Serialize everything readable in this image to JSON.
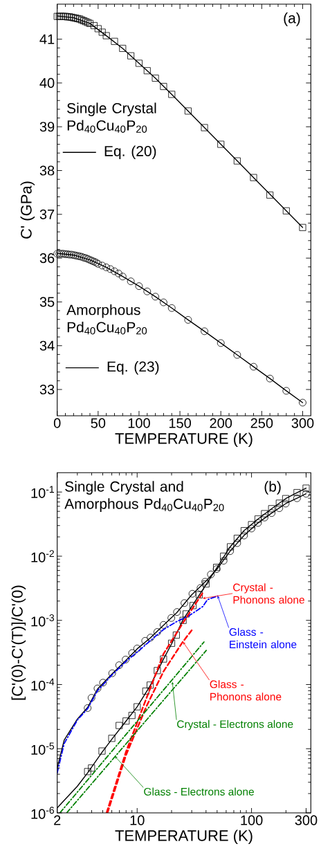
{
  "chart_data": [
    {
      "type": "scatter",
      "xlabel": "TEMPERATURE (K)",
      "ylabel": "C' (GPa)",
      "xlim": [
        0,
        310
      ],
      "ylim": [
        32.4,
        41.8
      ],
      "xticks": [
        0,
        50,
        100,
        150,
        200,
        250,
        300
      ],
      "yticks": [
        33,
        34,
        35,
        36,
        37,
        38,
        39,
        40,
        41
      ],
      "legend": "left",
      "annotations": [
        "(a)",
        "Single Crystal Pd$_{40}$Cu$_{40}$P$_{20}$",
        "Amorphous Pd$_{40}$Cu$_{40}$P$_{20}$"
      ],
      "series": [
        {
          "marker": "square",
          "color": "#000000",
          "x": [
            0,
            2.5,
            5,
            7.5,
            10,
            12.5,
            15,
            17.5,
            20,
            22.5,
            25,
            27.5,
            30,
            32.5,
            35,
            37.5,
            40,
            45,
            50,
            55,
            60,
            70,
            80,
            90,
            100,
            110,
            120,
            130,
            140,
            160,
            180,
            200,
            220,
            240,
            260,
            280,
            300
          ],
          "values": [
            41.52,
            41.52,
            41.52,
            41.52,
            41.52,
            41.51,
            41.51,
            41.5,
            41.49,
            41.48,
            41.47,
            41.46,
            41.44,
            41.42,
            41.4,
            41.38,
            41.36,
            41.31,
            41.24,
            41.16,
            41.08,
            40.95,
            40.79,
            40.62,
            40.45,
            40.28,
            40.11,
            39.92,
            39.74,
            39.36,
            38.98,
            38.6,
            38.22,
            37.84,
            37.44,
            37.08,
            36.7
          ]
        },
        {
          "type": "line",
          "name": "Eq. (20)",
          "color": "#000000",
          "line_style": "solid",
          "x": [
            0,
            20,
            40,
            60,
            80,
            100,
            120,
            140,
            160,
            180,
            200,
            220,
            240,
            260,
            280,
            300
          ],
          "values": [
            41.53,
            41.49,
            41.36,
            41.08,
            40.79,
            40.45,
            40.11,
            39.74,
            39.36,
            38.98,
            38.6,
            38.22,
            37.84,
            37.46,
            37.08,
            36.7
          ]
        },
        {
          "marker": "circle",
          "color": "#000000",
          "x": [
            0,
            2.5,
            5,
            7.5,
            10,
            12.5,
            15,
            17.5,
            20,
            22.5,
            25,
            27.5,
            30,
            32.5,
            35,
            37.5,
            40,
            42.5,
            45,
            47.5,
            50,
            55,
            60,
            65,
            70,
            75,
            80,
            90,
            100,
            110,
            120,
            130,
            140,
            160,
            180,
            200,
            220,
            240,
            260,
            280,
            300
          ],
          "values": [
            36.1,
            36.1,
            36.1,
            36.1,
            36.09,
            36.09,
            36.08,
            36.08,
            36.07,
            36.06,
            36.05,
            36.04,
            36.03,
            36.01,
            36.0,
            35.98,
            35.96,
            35.94,
            35.92,
            35.9,
            35.87,
            35.83,
            35.79,
            35.75,
            35.7,
            35.65,
            35.58,
            35.47,
            35.36,
            35.24,
            35.12,
            34.99,
            34.86,
            34.59,
            34.33,
            34.06,
            33.79,
            33.52,
            33.25,
            32.97,
            32.7
          ]
        },
        {
          "type": "line",
          "name": "Eq. (23)",
          "color": "#000000",
          "line_style": "solid",
          "x": [
            0,
            20,
            40,
            60,
            80,
            100,
            120,
            140,
            160,
            180,
            200,
            220,
            240,
            260,
            280,
            300
          ],
          "values": [
            36.11,
            36.07,
            35.96,
            35.79,
            35.58,
            35.36,
            35.12,
            34.86,
            34.59,
            34.33,
            34.06,
            33.79,
            33.52,
            33.25,
            32.97,
            32.7
          ]
        }
      ]
    },
    {
      "type": "line",
      "title": "Single Crystal and Amorphous Pd$_{40}$Cu$_{40}$P$_{20}$",
      "xlabel": "TEMPERATURE (K)",
      "ylabel": "[C'(0)-C'(T)]/C'(0)",
      "log": "xy",
      "xlim": [
        2,
        330
      ],
      "ylim": [
        1e-06,
        0.2
      ],
      "xticks": [
        2,
        10,
        100,
        300
      ],
      "yticks": [
        {
          "value": 1e-06,
          "label": "10$^{-6}$"
        },
        {
          "value": 1e-05,
          "label": "10$^{-5}$"
        },
        {
          "value": 0.0001,
          "label": "10$^{-4}$"
        },
        {
          "value": 0.001,
          "label": "10$^{-3}$"
        },
        {
          "value": 0.01,
          "label": "10$^{-2}$"
        },
        {
          "value": 0.1,
          "label": "10$^{-1}$"
        }
      ],
      "annotations": [
        "(b)",
        {
          "text": "Crystal - Phonons alone",
          "x": 37.5,
          "y": 0.0022
        },
        {
          "text": "Glass - Einstein alone",
          "x": 50.6,
          "y": 0.0024
        },
        {
          "text": "Glass - Phonons alone",
          "x": 25.2,
          "y": 0.00046
        },
        {
          "text": "Crystal - Electrons alone",
          "x": 20.3,
          "y": 0.00011
        },
        {
          "text": "Glass - Electrons alone",
          "x": 6.4,
          "y": 7.6e-06
        }
      ],
      "series": [
        {
          "type": "scatter",
          "marker": "square",
          "color": "#000000",
          "x": [
            3.69,
            3.99,
            4.93,
            6.0,
            6.96,
            8.0,
            9.0,
            10,
            11.9,
            13.0,
            15.0,
            17.0,
            20,
            22,
            25.2,
            26.8,
            30.8,
            34.9,
            40,
            49.5,
            57,
            65.4,
            75,
            86.3,
            100,
            114,
            130,
            150,
            175,
            199,
            250,
            300
          ],
          "values": [
            4.4e-06,
            5e-06,
            9.2e-06,
            1.45e-05,
            2.3e-05,
            2.7e-05,
            3.3e-05,
            4.5e-05,
            7.9e-05,
            9.8e-05,
            0.000165,
            0.00025,
            0.00044,
            0.00059,
            0.001,
            0.00126,
            0.0017,
            0.0025,
            0.0037,
            0.0067,
            0.01,
            0.014,
            0.019,
            0.025,
            0.031,
            0.038,
            0.046,
            0.055,
            0.067,
            0.079,
            0.098,
            0.115
          ]
        },
        {
          "type": "scatter",
          "marker": "circle",
          "color": "#000000",
          "x": [
            3.69,
            3.99,
            4.5,
            5.03,
            6.05,
            6.96,
            7.93,
            9.03,
            10,
            11.75,
            13.1,
            15.0,
            17.0,
            19.9,
            22.3,
            25.9,
            30.4,
            35.8,
            39.3,
            44.1,
            49.5,
            57,
            65,
            75,
            86,
            100,
            114,
            130,
            150,
            175,
            199,
            250,
            300
          ],
          "values": [
            4.3e-05,
            6.2e-05,
            8.7e-05,
            0.000107,
            0.00015,
            0.0002,
            0.000245,
            0.00031,
            0.000365,
            0.00048,
            0.00054,
            0.00066,
            0.00085,
            0.00109,
            0.00135,
            0.00186,
            0.0026,
            0.0032,
            0.004,
            0.0052,
            0.0063,
            0.0085,
            0.012,
            0.016,
            0.021,
            0.027,
            0.033,
            0.04,
            0.047,
            0.056,
            0.066,
            0.08,
            0.094
          ]
        },
        {
          "color": "#000000",
          "line_style": "solid",
          "x": [
            2,
            3,
            3.69,
            4.93,
            6,
            8,
            10,
            13,
            17,
            20,
            25,
            30,
            35,
            40,
            50,
            65,
            86,
            114,
            150,
            199,
            250,
            300
          ],
          "values": [
            1.2e-06,
            2.6e-06,
            4.2e-06,
            8.8e-06,
            1.4e-05,
            2.7e-05,
            4.5e-05,
            9.6e-05,
            0.00025,
            0.00043,
            0.001,
            0.00165,
            0.0025,
            0.0036,
            0.0067,
            0.014,
            0.025,
            0.038,
            0.055,
            0.079,
            0.098,
            0.115
          ]
        },
        {
          "color": "#000000",
          "line_style": "solid",
          "x": [
            2,
            2.3,
            3,
            3.69,
            4.5,
            6,
            8,
            10,
            13,
            17,
            22.3,
            30,
            40,
            50,
            65,
            86,
            114,
            150,
            199,
            250,
            300
          ],
          "values": [
            5e-06,
            1.36e-05,
            2.9e-05,
            4.4e-05,
            8.5e-05,
            0.000145,
            0.00024,
            0.00036,
            0.00053,
            0.00084,
            0.00133,
            0.0025,
            0.0041,
            0.0063,
            0.012,
            0.021,
            0.033,
            0.047,
            0.066,
            0.08,
            0.094
          ]
        },
        {
          "color": "#0000ff",
          "line_style": "dashdot",
          "x": [
            2,
            2.3,
            3,
            3.69,
            4.5,
            6,
            8,
            10,
            13,
            17,
            22,
            28.4,
            37.5,
            41.1,
            50.6
          ],
          "values": [
            4.2e-06,
            1.2e-05,
            2.8e-05,
            4.2e-05,
            8e-05,
            0.00014,
            0.00023,
            0.00032,
            0.00048,
            0.00072,
            0.00095,
            0.00118,
            0.00164,
            0.0021,
            0.0024
          ]
        },
        {
          "color": "#ff0000",
          "line_style": "dashed",
          "x": [
            5.4,
            8,
            12,
            17,
            25,
            37.5
          ],
          "values": [
            1e-06,
            9e-06,
            6e-05,
            0.0003,
            0.0009,
            0.0027
          ]
        },
        {
          "color": "#ff0000",
          "line_style": "dashed",
          "x": [
            5.5,
            8,
            12,
            17,
            25,
            30
          ],
          "values": [
            1e-06,
            8e-06,
            4.5e-05,
            0.00016,
            0.00046,
            0.0007
          ]
        },
        {
          "color": "#008000",
          "line_style": "dashdot",
          "x": [
            2.11,
            38.4
          ],
          "values": [
            1e-06,
            0.00046
          ]
        },
        {
          "color": "#008000",
          "line_style": "dashdot",
          "x": [
            2.42,
            40.2
          ],
          "values": [
            1e-06,
            0.00034
          ]
        }
      ]
    }
  ]
}
